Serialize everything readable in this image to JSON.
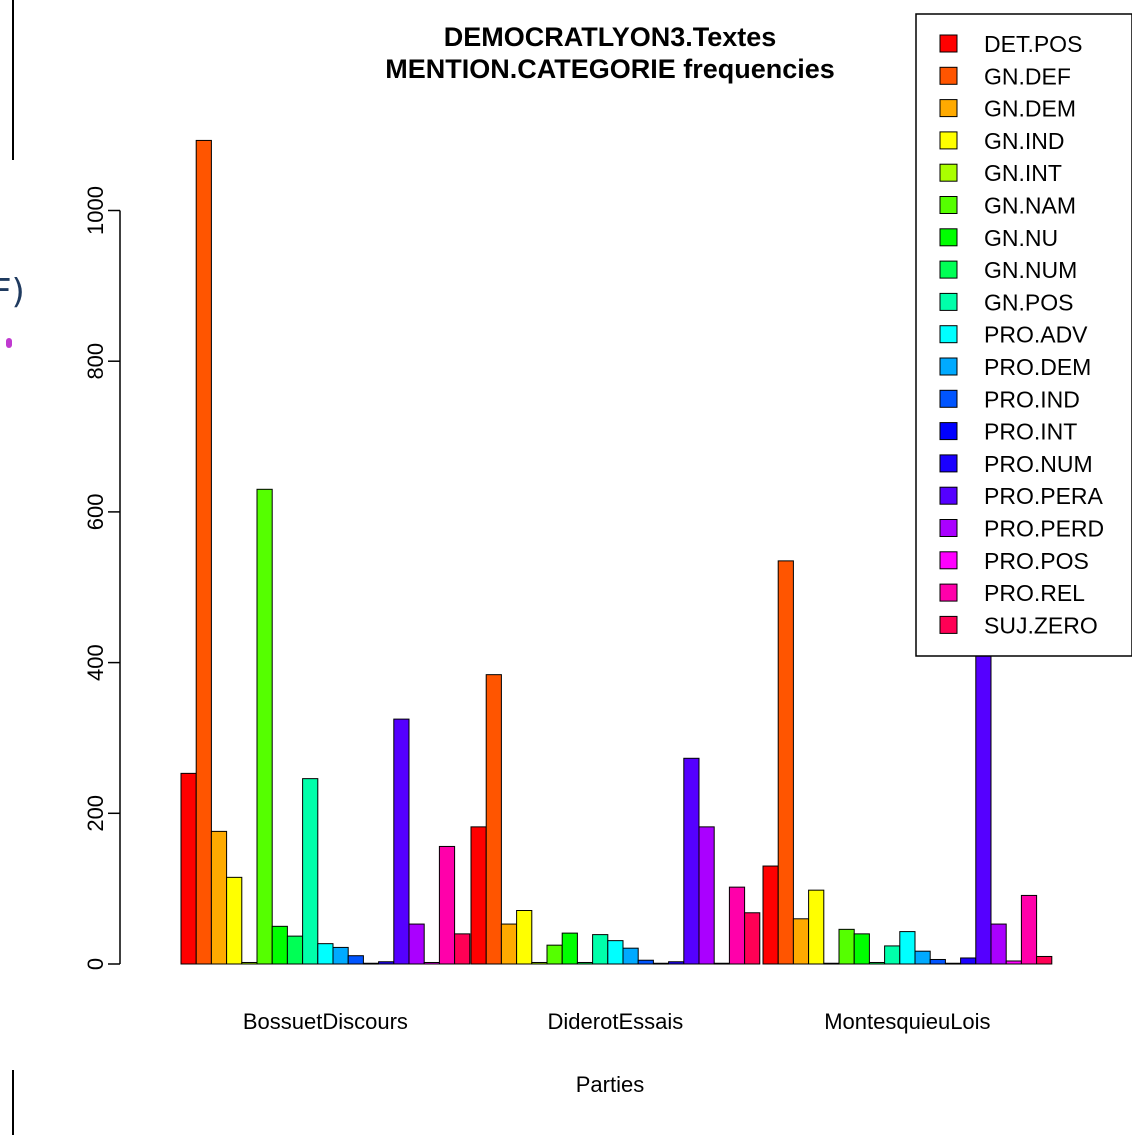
{
  "chart_data": {
    "type": "bar",
    "title_lines": [
      "DEMOCRATLYON3.Textes",
      "MENTION.CATEGORIE frequencies"
    ],
    "xlabel": "Parties",
    "ylabel": "",
    "ylim": [
      0,
      1100
    ],
    "yticks": [
      0,
      200,
      400,
      600,
      800,
      1000
    ],
    "grid": false,
    "legend_position": "top-right",
    "categories": [
      "BossuetDiscours",
      "DiderotEssais",
      "MontesquieuLois"
    ],
    "series": [
      {
        "name": "DET.POS",
        "color": "#FF0000",
        "values": [
          253,
          182,
          130
        ]
      },
      {
        "name": "GN.DEF",
        "color": "#FF5500",
        "values": [
          1093,
          384,
          535
        ]
      },
      {
        "name": "GN.DEM",
        "color": "#FFAA00",
        "values": [
          176,
          53,
          60
        ]
      },
      {
        "name": "GN.IND",
        "color": "#FFFF00",
        "values": [
          115,
          71,
          98
        ]
      },
      {
        "name": "GN.INT",
        "color": "#AAFF00",
        "values": [
          2,
          2,
          1
        ]
      },
      {
        "name": "GN.NAM",
        "color": "#55FF00",
        "values": [
          630,
          25,
          46
        ]
      },
      {
        "name": "GN.NU",
        "color": "#00FF00",
        "values": [
          50,
          41,
          40
        ]
      },
      {
        "name": "GN.NUM",
        "color": "#00FF55",
        "values": [
          37,
          2,
          2
        ]
      },
      {
        "name": "GN.POS",
        "color": "#00FFAA",
        "values": [
          246,
          39,
          24
        ]
      },
      {
        "name": "PRO.ADV",
        "color": "#00FFFF",
        "values": [
          27,
          31,
          43
        ]
      },
      {
        "name": "PRO.DEM",
        "color": "#00AAFF",
        "values": [
          22,
          21,
          17
        ]
      },
      {
        "name": "PRO.IND",
        "color": "#0055FF",
        "values": [
          11,
          5,
          6
        ]
      },
      {
        "name": "PRO.INT",
        "color": "#0000FF",
        "values": [
          1,
          1,
          1
        ]
      },
      {
        "name": "PRO.NUM",
        "color": "#1A00FF",
        "values": [
          3,
          3,
          8
        ]
      },
      {
        "name": "PRO.PERA",
        "color": "#5500FF",
        "values": [
          325,
          273,
          423
        ]
      },
      {
        "name": "PRO.PERD",
        "color": "#AA00FF",
        "values": [
          53,
          182,
          53
        ]
      },
      {
        "name": "PRO.POS",
        "color": "#FF00FF",
        "values": [
          2,
          1,
          4
        ]
      },
      {
        "name": "PRO.REL",
        "color": "#FF00AA",
        "values": [
          156,
          102,
          91
        ]
      },
      {
        "name": "SUJ.ZERO",
        "color": "#FF0055",
        "values": [
          40,
          68,
          10
        ]
      }
    ]
  },
  "background_fragments": {
    "glyph_1": "F)"
  }
}
